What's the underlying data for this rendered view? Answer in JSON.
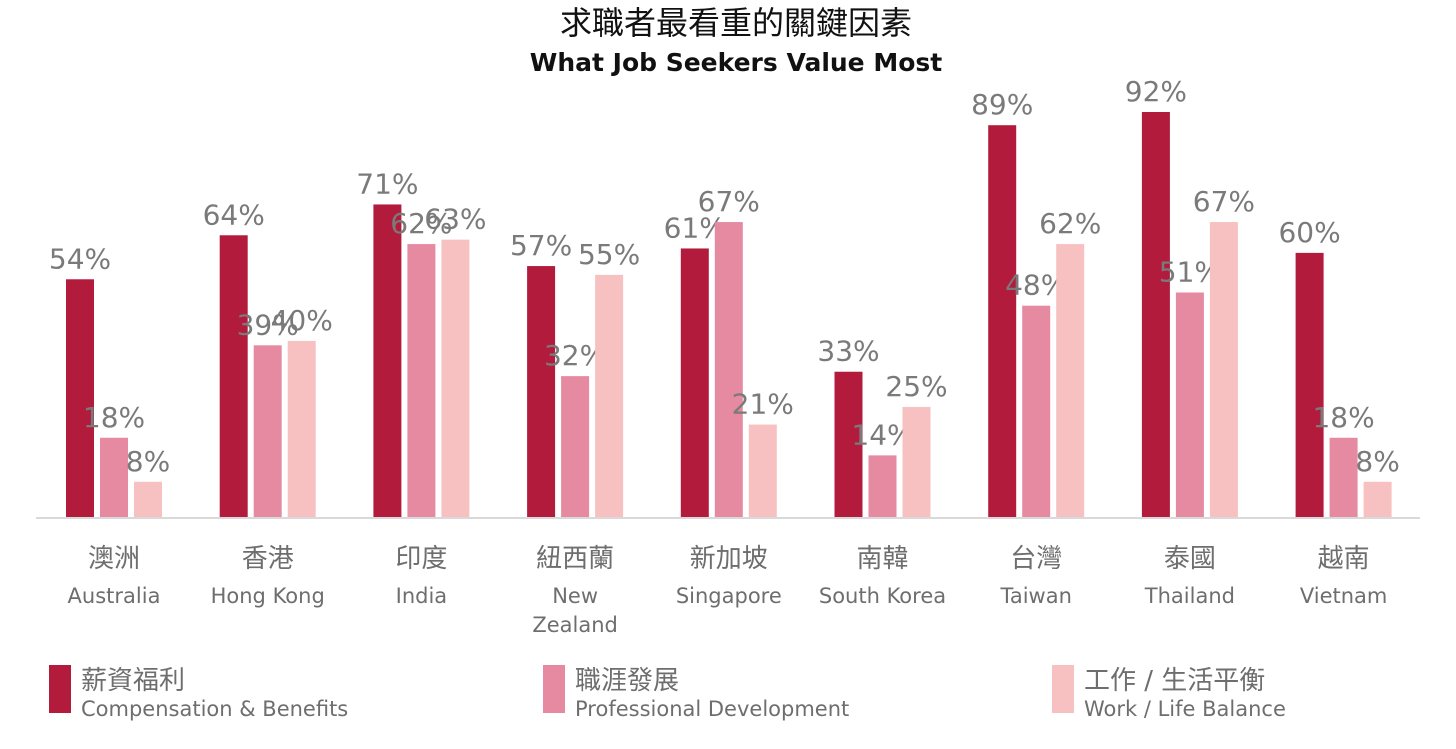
{
  "chart_data": {
    "type": "bar",
    "title": "求職者最看重的關鍵因素",
    "subtitle": "What Job Seekers Value Most",
    "categories": [
      {
        "zh": "澳洲",
        "en": [
          "Australia"
        ]
      },
      {
        "zh": "香港",
        "en": [
          "Hong Kong"
        ]
      },
      {
        "zh": "印度",
        "en": [
          "India"
        ]
      },
      {
        "zh": "紐西蘭",
        "en": [
          "New",
          "Zealand"
        ]
      },
      {
        "zh": "新加坡",
        "en": [
          "Singapore"
        ]
      },
      {
        "zh": "南韓",
        "en": [
          "South Korea"
        ]
      },
      {
        "zh": "台灣",
        "en": [
          "Taiwan"
        ]
      },
      {
        "zh": "泰國",
        "en": [
          "Thailand"
        ]
      },
      {
        "zh": "越南",
        "en": [
          "Vietnam"
        ]
      }
    ],
    "series": [
      {
        "name_zh": "薪資福利",
        "name_en": "Compensation & Benefits",
        "color": "#b31b3d",
        "values": [
          54,
          64,
          71,
          57,
          61,
          33,
          89,
          92,
          60
        ]
      },
      {
        "name_zh": "職涯發展",
        "name_en": "Professional Development",
        "color": "#e68aa2",
        "values": [
          18,
          39,
          62,
          32,
          67,
          14,
          48,
          51,
          18
        ]
      },
      {
        "name_zh": "工作 / 生活平衡",
        "name_en": "Work / Life Balance",
        "color": "#f7c1c2",
        "values": [
          8,
          40,
          63,
          55,
          21,
          25,
          62,
          67,
          8
        ]
      }
    ],
    "value_suffix": "%",
    "ylim": [
      0,
      100
    ],
    "grid": false,
    "legend_position": "bottom"
  }
}
